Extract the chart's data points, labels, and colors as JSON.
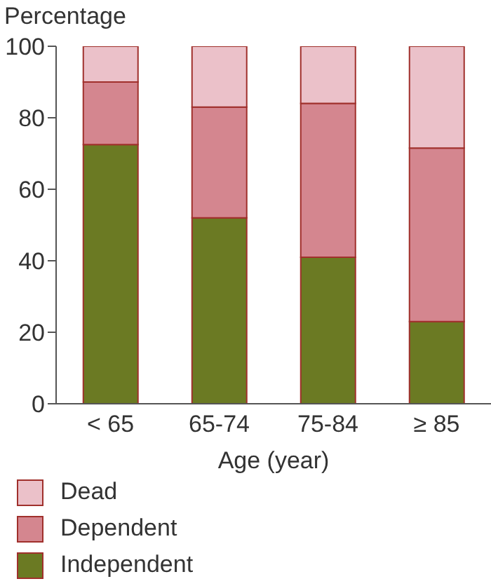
{
  "chart_data": {
    "type": "bar",
    "stacked": true,
    "ylabel": "Percentage",
    "xlabel": "Age (year)",
    "categories": [
      "< 65",
      "65-74",
      "75-84",
      "≥ 85"
    ],
    "series": [
      {
        "name": "Independent",
        "color": "#6b7a23",
        "values": [
          72.5,
          52,
          41,
          23
        ]
      },
      {
        "name": "Dependent",
        "color": "#d4868f",
        "values": [
          17.5,
          31,
          43,
          48.5
        ]
      },
      {
        "name": "Dead",
        "color": "#ebc1c9",
        "values": [
          10,
          17,
          16,
          28.5
        ]
      }
    ],
    "ylim": [
      0,
      100
    ],
    "yticks": [
      0,
      20,
      40,
      60,
      80,
      100
    ],
    "grid": false,
    "legend": "bottom left"
  }
}
